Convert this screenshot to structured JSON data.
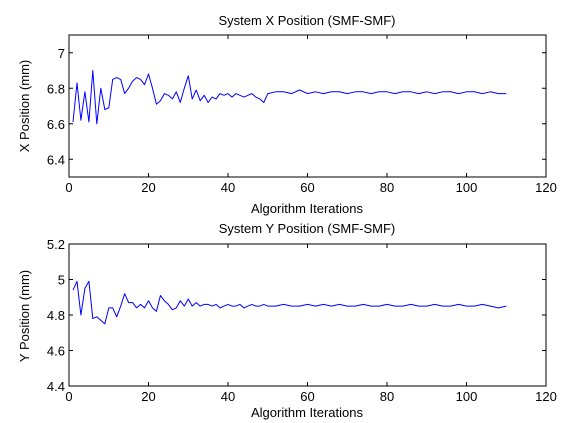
{
  "chart_data": [
    {
      "type": "line",
      "title": "System X Position (SMF-SMF)",
      "xlabel": "Algorithm Iterations",
      "ylabel": "X Position (mm)",
      "xlim": [
        0,
        120
      ],
      "ylim": [
        6.3,
        7.1
      ],
      "xticks": [
        0,
        20,
        40,
        60,
        80,
        100,
        120
      ],
      "yticks": [
        6.4,
        6.6,
        6.8,
        7
      ],
      "xtick_labels": [
        "0",
        "20",
        "40",
        "60",
        "80",
        "100",
        "120"
      ],
      "ytick_labels": [
        "6.4",
        "6.6",
        "6.8",
        "7"
      ],
      "grid": true,
      "series": [
        {
          "color": "#0000ff",
          "x": [
            1,
            2,
            3,
            4,
            5,
            6,
            7,
            8,
            9,
            10,
            11,
            12,
            13,
            14,
            15,
            16,
            17,
            18,
            19,
            20,
            21,
            22,
            23,
            24,
            25,
            26,
            27,
            28,
            29,
            30,
            31,
            32,
            33,
            34,
            35,
            36,
            37,
            38,
            39,
            40,
            41,
            42,
            43,
            44,
            45,
            46,
            47,
            48,
            49,
            50,
            52,
            54,
            56,
            58,
            60,
            62,
            64,
            66,
            68,
            70,
            72,
            74,
            76,
            78,
            80,
            82,
            84,
            86,
            88,
            90,
            92,
            94,
            96,
            98,
            100,
            102,
            104,
            106,
            108,
            110
          ],
          "y": [
            6.61,
            6.83,
            6.62,
            6.78,
            6.61,
            6.9,
            6.6,
            6.8,
            6.68,
            6.69,
            6.85,
            6.86,
            6.85,
            6.77,
            6.8,
            6.84,
            6.86,
            6.85,
            6.82,
            6.88,
            6.8,
            6.71,
            6.73,
            6.77,
            6.76,
            6.74,
            6.78,
            6.72,
            6.8,
            6.87,
            6.74,
            6.79,
            6.73,
            6.76,
            6.72,
            6.75,
            6.74,
            6.77,
            6.76,
            6.77,
            6.75,
            6.77,
            6.76,
            6.75,
            6.76,
            6.77,
            6.75,
            6.74,
            6.72,
            6.77,
            6.78,
            6.78,
            6.77,
            6.79,
            6.77,
            6.78,
            6.77,
            6.78,
            6.78,
            6.77,
            6.78,
            6.78,
            6.77,
            6.78,
            6.78,
            6.77,
            6.78,
            6.78,
            6.77,
            6.78,
            6.77,
            6.78,
            6.78,
            6.77,
            6.78,
            6.78,
            6.77,
            6.78,
            6.77,
            6.77
          ]
        }
      ]
    },
    {
      "type": "line",
      "title": "System Y Position (SMF-SMF)",
      "xlabel": "Algorithm Iterations",
      "ylabel": "Y Position (mm)",
      "xlim": [
        0,
        120
      ],
      "ylim": [
        4.4,
        5.2
      ],
      "xticks": [
        0,
        20,
        40,
        60,
        80,
        100,
        120
      ],
      "yticks": [
        4.4,
        4.6,
        4.8,
        5,
        5.2
      ],
      "xtick_labels": [
        "0",
        "20",
        "40",
        "60",
        "80",
        "100",
        "120"
      ],
      "ytick_labels": [
        "4.4",
        "4.6",
        "4.8",
        "5",
        "5.2"
      ],
      "grid": true,
      "series": [
        {
          "color": "#0000ff",
          "x": [
            1,
            2,
            3,
            4,
            5,
            6,
            7,
            8,
            9,
            10,
            11,
            12,
            13,
            14,
            15,
            16,
            17,
            18,
            19,
            20,
            21,
            22,
            23,
            24,
            25,
            26,
            27,
            28,
            29,
            30,
            31,
            32,
            33,
            34,
            35,
            36,
            37,
            38,
            39,
            40,
            41,
            42,
            43,
            44,
            45,
            46,
            47,
            48,
            49,
            50,
            52,
            54,
            56,
            58,
            60,
            62,
            64,
            66,
            68,
            70,
            72,
            74,
            76,
            78,
            80,
            82,
            84,
            86,
            88,
            90,
            92,
            94,
            96,
            98,
            100,
            102,
            104,
            106,
            108,
            110
          ],
          "y": [
            4.94,
            4.99,
            4.8,
            4.95,
            4.99,
            4.78,
            4.79,
            4.77,
            4.75,
            4.84,
            4.84,
            4.79,
            4.85,
            4.92,
            4.87,
            4.87,
            4.84,
            4.86,
            4.84,
            4.88,
            4.84,
            4.82,
            4.91,
            4.88,
            4.86,
            4.83,
            4.84,
            4.88,
            4.85,
            4.89,
            4.85,
            4.87,
            4.85,
            4.86,
            4.86,
            4.85,
            4.86,
            4.84,
            4.85,
            4.86,
            4.85,
            4.85,
            4.86,
            4.84,
            4.85,
            4.86,
            4.85,
            4.85,
            4.86,
            4.85,
            4.85,
            4.86,
            4.85,
            4.85,
            4.86,
            4.85,
            4.86,
            4.85,
            4.86,
            4.85,
            4.85,
            4.86,
            4.85,
            4.85,
            4.86,
            4.85,
            4.85,
            4.86,
            4.85,
            4.85,
            4.86,
            4.85,
            4.85,
            4.86,
            4.85,
            4.85,
            4.86,
            4.85,
            4.84,
            4.85
          ]
        }
      ]
    }
  ]
}
